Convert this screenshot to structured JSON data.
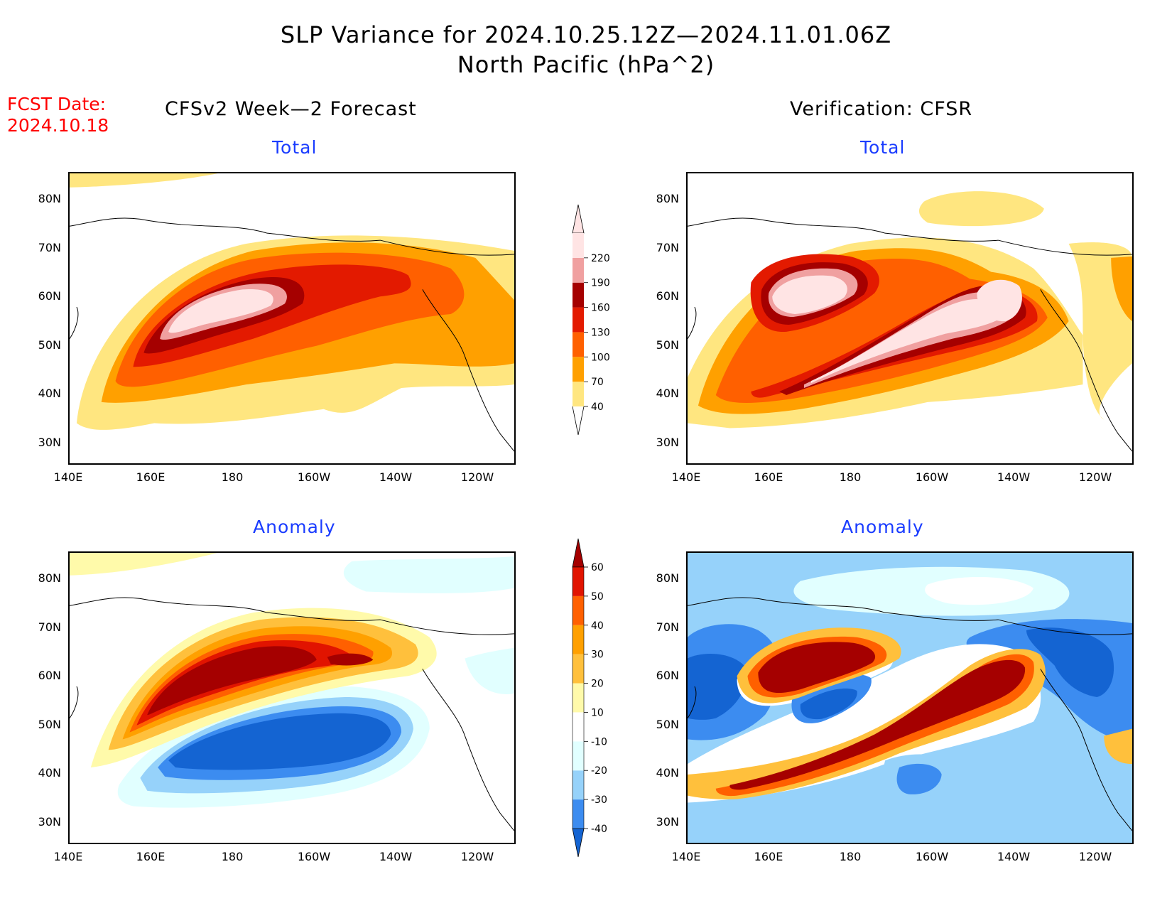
{
  "title_line1": "SLP Variance for 2024.10.25.12Z—2024.11.01.06Z",
  "title_line2": "North Pacific (hPa^2)",
  "fcst_line1": "FCST Date:",
  "fcst_line2": "2024.10.18",
  "left_heading": "CFSv2 Week—2 Forecast",
  "right_heading": "Verification: CFSR",
  "panels": {
    "forecast_total_title": "Total",
    "forecast_anomaly_title": "Anomaly",
    "verification_total_title": "Total",
    "verification_anomaly_title": "Anomaly"
  },
  "lat_labels": [
    "80N",
    "70N",
    "60N",
    "50N",
    "40N",
    "30N"
  ],
  "lon_labels": [
    "140E",
    "160E",
    "180",
    "160W",
    "140W",
    "120W"
  ],
  "total_colorbar": {
    "levels": [
      "40",
      "70",
      "100",
      "130",
      "160",
      "190",
      "220"
    ],
    "colors": [
      "#ffe680",
      "#ffa000",
      "#ff6000",
      "#e31a00",
      "#a50000",
      "#f0a0a0",
      "#ffe4e4"
    ]
  },
  "anomaly_colorbar": {
    "levels": [
      "-40",
      "-30",
      "-20",
      "-10",
      "10",
      "20",
      "30",
      "40",
      "50",
      "60"
    ],
    "colors": [
      "#1464d2",
      "#3c8cf0",
      "#96d2fa",
      "#e1ffff",
      "#ffffff",
      "#fffaaa",
      "#ffc03c",
      "#ffa000",
      "#ff6000",
      "#e11400",
      "#a50000"
    ]
  }
}
